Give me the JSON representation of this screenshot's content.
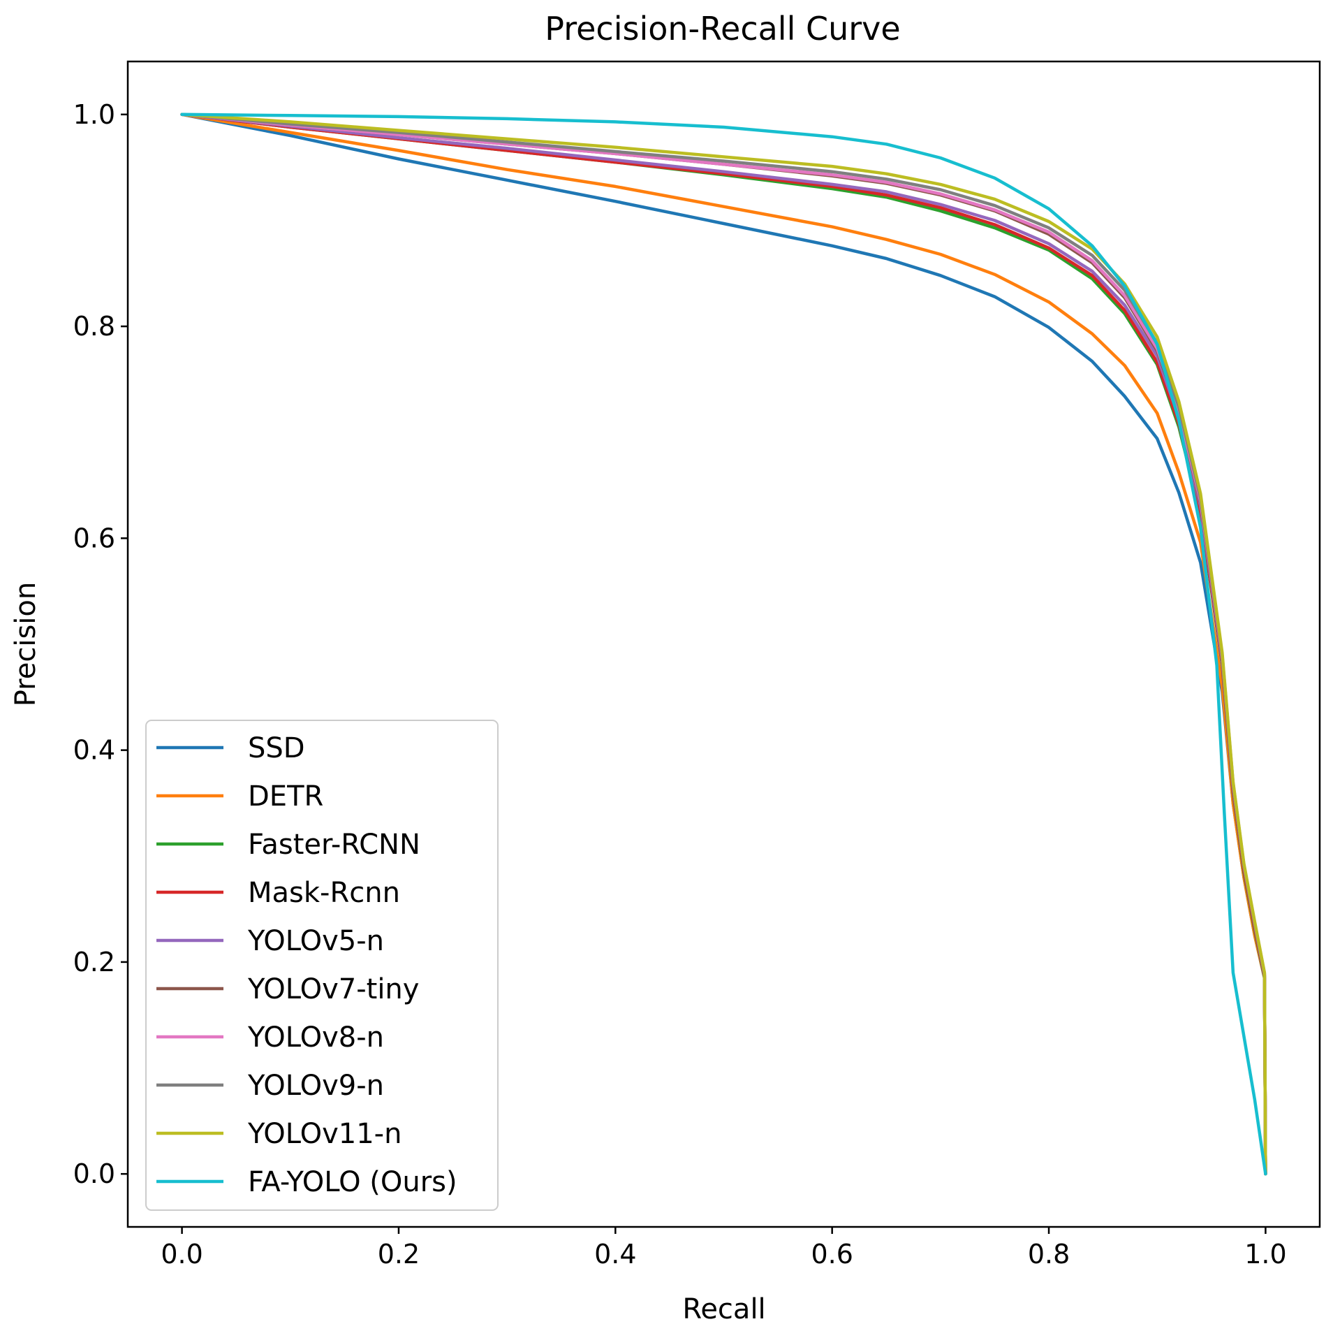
{
  "chart_data": {
    "type": "line",
    "title": "Precision-Recall Curve",
    "xlabel": "Recall",
    "ylabel": "Precision",
    "xlim": [
      -0.05,
      1.05
    ],
    "ylim": [
      -0.05,
      1.05
    ],
    "xticks": [
      0.0,
      0.2,
      0.4,
      0.6,
      0.8,
      1.0
    ],
    "xtick_labels": [
      "0.0",
      "0.2",
      "0.4",
      "0.6",
      "0.8",
      "1.0"
    ],
    "yticks": [
      0.0,
      0.2,
      0.4,
      0.6,
      0.8,
      1.0
    ],
    "ytick_labels": [
      "0.0",
      "0.2",
      "0.4",
      "0.6",
      "0.8",
      "1.0"
    ],
    "grid": false,
    "legend_position": "lower-left",
    "series": [
      {
        "name": "SSD",
        "color": "#1f77b4",
        "points": [
          [
            0,
            1.0
          ],
          [
            0.1,
            0.98
          ],
          [
            0.2,
            0.958
          ],
          [
            0.3,
            0.938
          ],
          [
            0.4,
            0.918
          ],
          [
            0.5,
            0.897
          ],
          [
            0.6,
            0.876
          ],
          [
            0.65,
            0.864
          ],
          [
            0.7,
            0.848
          ],
          [
            0.75,
            0.828
          ],
          [
            0.8,
            0.799
          ],
          [
            0.84,
            0.767
          ],
          [
            0.87,
            0.734
          ],
          [
            0.9,
            0.694
          ],
          [
            0.92,
            0.643
          ],
          [
            0.94,
            0.577
          ],
          [
            0.96,
            0.455
          ],
          [
            0.97,
            0.35
          ],
          [
            0.98,
            0.28
          ],
          [
            0.99,
            0.225
          ],
          [
            0.999,
            0.185
          ],
          [
            1.0,
            0.0
          ]
        ]
      },
      {
        "name": "DETR",
        "color": "#ff7f0e",
        "points": [
          [
            0,
            1.0
          ],
          [
            0.1,
            0.983
          ],
          [
            0.2,
            0.966
          ],
          [
            0.3,
            0.948
          ],
          [
            0.4,
            0.932
          ],
          [
            0.5,
            0.913
          ],
          [
            0.6,
            0.894
          ],
          [
            0.65,
            0.882
          ],
          [
            0.7,
            0.868
          ],
          [
            0.75,
            0.849
          ],
          [
            0.8,
            0.823
          ],
          [
            0.84,
            0.793
          ],
          [
            0.87,
            0.763
          ],
          [
            0.9,
            0.718
          ],
          [
            0.92,
            0.662
          ],
          [
            0.94,
            0.596
          ],
          [
            0.96,
            0.46
          ],
          [
            0.97,
            0.35
          ],
          [
            0.98,
            0.28
          ],
          [
            0.99,
            0.225
          ],
          [
            0.999,
            0.185
          ],
          [
            1.0,
            0.0
          ]
        ]
      },
      {
        "name": "Faster-RCNN",
        "color": "#2ca02c",
        "points": [
          [
            0,
            1.0
          ],
          [
            0.1,
            0.988
          ],
          [
            0.2,
            0.977
          ],
          [
            0.3,
            0.966
          ],
          [
            0.4,
            0.955
          ],
          [
            0.5,
            0.943
          ],
          [
            0.6,
            0.93
          ],
          [
            0.65,
            0.922
          ],
          [
            0.7,
            0.909
          ],
          [
            0.75,
            0.893
          ],
          [
            0.8,
            0.872
          ],
          [
            0.84,
            0.845
          ],
          [
            0.87,
            0.812
          ],
          [
            0.9,
            0.764
          ],
          [
            0.92,
            0.705
          ],
          [
            0.94,
            0.623
          ],
          [
            0.96,
            0.48
          ],
          [
            0.97,
            0.36
          ],
          [
            0.98,
            0.285
          ],
          [
            0.99,
            0.23
          ],
          [
            0.999,
            0.185
          ],
          [
            1.0,
            0.0
          ]
        ]
      },
      {
        "name": "Mask-Rcnn",
        "color": "#d62728",
        "points": [
          [
            0,
            1.0
          ],
          [
            0.1,
            0.988
          ],
          [
            0.2,
            0.977
          ],
          [
            0.3,
            0.966
          ],
          [
            0.4,
            0.955
          ],
          [
            0.5,
            0.944
          ],
          [
            0.6,
            0.932
          ],
          [
            0.65,
            0.924
          ],
          [
            0.7,
            0.912
          ],
          [
            0.75,
            0.896
          ],
          [
            0.8,
            0.874
          ],
          [
            0.84,
            0.848
          ],
          [
            0.87,
            0.815
          ],
          [
            0.9,
            0.766
          ],
          [
            0.92,
            0.708
          ],
          [
            0.94,
            0.625
          ],
          [
            0.96,
            0.482
          ],
          [
            0.97,
            0.362
          ],
          [
            0.98,
            0.287
          ],
          [
            0.99,
            0.232
          ],
          [
            0.999,
            0.186
          ],
          [
            1.0,
            0.0
          ]
        ]
      },
      {
        "name": "YOLOv5-n",
        "color": "#9467bd",
        "points": [
          [
            0,
            1.0
          ],
          [
            0.1,
            0.989
          ],
          [
            0.2,
            0.978
          ],
          [
            0.3,
            0.968
          ],
          [
            0.4,
            0.957
          ],
          [
            0.5,
            0.946
          ],
          [
            0.6,
            0.934
          ],
          [
            0.65,
            0.927
          ],
          [
            0.7,
            0.915
          ],
          [
            0.75,
            0.9
          ],
          [
            0.8,
            0.878
          ],
          [
            0.84,
            0.852
          ],
          [
            0.87,
            0.82
          ],
          [
            0.9,
            0.772
          ],
          [
            0.92,
            0.714
          ],
          [
            0.94,
            0.63
          ],
          [
            0.96,
            0.485
          ],
          [
            0.97,
            0.365
          ],
          [
            0.98,
            0.29
          ],
          [
            0.99,
            0.235
          ],
          [
            0.999,
            0.187
          ],
          [
            1.0,
            0.0
          ]
        ]
      },
      {
        "name": "YOLOv7-tiny",
        "color": "#8c564b",
        "points": [
          [
            0,
            1.0
          ],
          [
            0.1,
            0.99
          ],
          [
            0.2,
            0.981
          ],
          [
            0.3,
            0.972
          ],
          [
            0.4,
            0.963
          ],
          [
            0.5,
            0.953
          ],
          [
            0.6,
            0.942
          ],
          [
            0.65,
            0.935
          ],
          [
            0.7,
            0.924
          ],
          [
            0.75,
            0.909
          ],
          [
            0.8,
            0.887
          ],
          [
            0.84,
            0.86
          ],
          [
            0.87,
            0.827
          ],
          [
            0.9,
            0.777
          ],
          [
            0.92,
            0.718
          ],
          [
            0.94,
            0.633
          ],
          [
            0.96,
            0.487
          ],
          [
            0.97,
            0.367
          ],
          [
            0.98,
            0.29
          ],
          [
            0.99,
            0.235
          ],
          [
            0.999,
            0.187
          ],
          [
            1.0,
            0.0
          ]
        ]
      },
      {
        "name": "YOLOv8-n",
        "color": "#e377c2",
        "points": [
          [
            0,
            1.0
          ],
          [
            0.1,
            0.99
          ],
          [
            0.2,
            0.981
          ],
          [
            0.3,
            0.972
          ],
          [
            0.4,
            0.963
          ],
          [
            0.5,
            0.953
          ],
          [
            0.6,
            0.943
          ],
          [
            0.65,
            0.936
          ],
          [
            0.7,
            0.925
          ],
          [
            0.75,
            0.91
          ],
          [
            0.8,
            0.889
          ],
          [
            0.84,
            0.862
          ],
          [
            0.87,
            0.829
          ],
          [
            0.9,
            0.779
          ],
          [
            0.92,
            0.72
          ],
          [
            0.94,
            0.635
          ],
          [
            0.96,
            0.488
          ],
          [
            0.97,
            0.368
          ],
          [
            0.98,
            0.291
          ],
          [
            0.99,
            0.236
          ],
          [
            0.999,
            0.188
          ],
          [
            1.0,
            0.0
          ]
        ]
      },
      {
        "name": "YOLOv9-n",
        "color": "#7f7f7f",
        "points": [
          [
            0,
            1.0
          ],
          [
            0.1,
            0.991
          ],
          [
            0.2,
            0.983
          ],
          [
            0.3,
            0.974
          ],
          [
            0.4,
            0.965
          ],
          [
            0.5,
            0.956
          ],
          [
            0.6,
            0.946
          ],
          [
            0.65,
            0.939
          ],
          [
            0.7,
            0.929
          ],
          [
            0.75,
            0.914
          ],
          [
            0.8,
            0.893
          ],
          [
            0.84,
            0.867
          ],
          [
            0.87,
            0.834
          ],
          [
            0.9,
            0.784
          ],
          [
            0.92,
            0.724
          ],
          [
            0.94,
            0.638
          ],
          [
            0.96,
            0.49
          ],
          [
            0.97,
            0.369
          ],
          [
            0.98,
            0.292
          ],
          [
            0.99,
            0.237
          ],
          [
            0.999,
            0.189
          ],
          [
            1.0,
            0.0
          ]
        ]
      },
      {
        "name": "YOLOv11-n",
        "color": "#bcbd22",
        "points": [
          [
            0,
            1.0
          ],
          [
            0.1,
            0.993
          ],
          [
            0.2,
            0.985
          ],
          [
            0.3,
            0.977
          ],
          [
            0.4,
            0.969
          ],
          [
            0.5,
            0.96
          ],
          [
            0.6,
            0.951
          ],
          [
            0.65,
            0.944
          ],
          [
            0.7,
            0.934
          ],
          [
            0.75,
            0.92
          ],
          [
            0.8,
            0.899
          ],
          [
            0.84,
            0.873
          ],
          [
            0.87,
            0.84
          ],
          [
            0.9,
            0.79
          ],
          [
            0.92,
            0.729
          ],
          [
            0.94,
            0.642
          ],
          [
            0.96,
            0.492
          ],
          [
            0.97,
            0.37
          ],
          [
            0.98,
            0.293
          ],
          [
            0.99,
            0.238
          ],
          [
            0.999,
            0.19
          ],
          [
            1.0,
            0.0
          ]
        ]
      },
      {
        "name": "FA-YOLO (Ours)",
        "color": "#17becf",
        "points": [
          [
            0,
            1.0
          ],
          [
            0.1,
            0.999
          ],
          [
            0.2,
            0.998
          ],
          [
            0.3,
            0.996
          ],
          [
            0.4,
            0.993
          ],
          [
            0.5,
            0.988
          ],
          [
            0.6,
            0.979
          ],
          [
            0.65,
            0.972
          ],
          [
            0.7,
            0.959
          ],
          [
            0.75,
            0.94
          ],
          [
            0.8,
            0.911
          ],
          [
            0.84,
            0.876
          ],
          [
            0.87,
            0.838
          ],
          [
            0.9,
            0.783
          ],
          [
            0.92,
            0.711
          ],
          [
            0.94,
            0.61
          ],
          [
            0.955,
            0.48
          ],
          [
            0.962,
            0.34
          ],
          [
            0.97,
            0.19
          ],
          [
            0.98,
            0.13
          ],
          [
            0.99,
            0.07
          ],
          [
            1.0,
            0.0
          ]
        ]
      }
    ]
  }
}
